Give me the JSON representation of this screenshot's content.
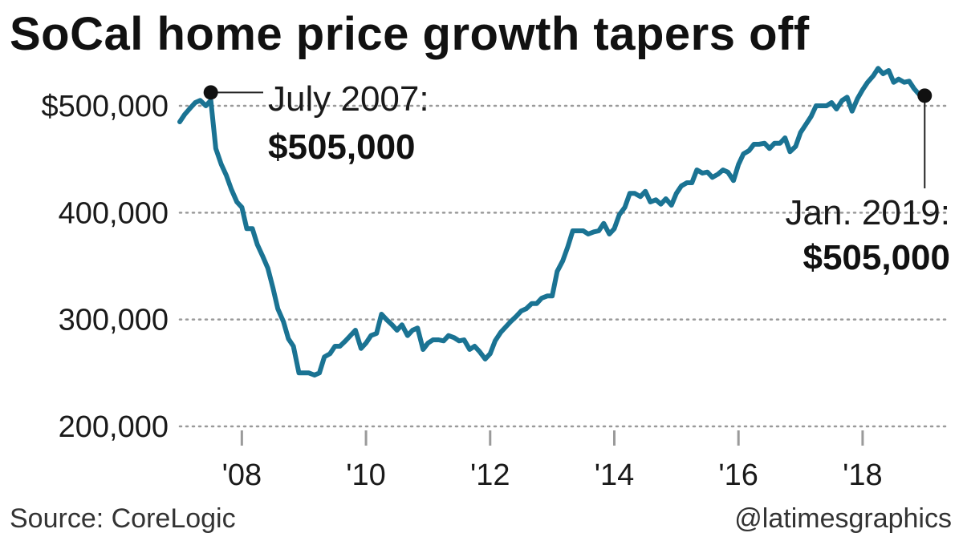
{
  "title": "SoCal home price growth tapers off",
  "source": "Source: CoreLogic",
  "credit": "@latimesgraphics",
  "chart_data": {
    "type": "line",
    "title": "SoCal home price growth tapers off",
    "xlabel": "",
    "ylabel": "",
    "line_color": "#1a7393",
    "grid": "dotted horizontal",
    "xlim": [
      2007.0,
      2019.1
    ],
    "ylim": [
      200000,
      540000
    ],
    "y_ticks": [
      {
        "value": 500000,
        "label": "$500,000"
      },
      {
        "value": 400000,
        "label": "400,000"
      },
      {
        "value": 300000,
        "label": "300,000"
      },
      {
        "value": 200000,
        "label": "200,000"
      }
    ],
    "x_ticks": [
      {
        "value": 2008,
        "label": "'08"
      },
      {
        "value": 2010,
        "label": "'10"
      },
      {
        "value": 2012,
        "label": "'12"
      },
      {
        "value": 2014,
        "label": "'14"
      },
      {
        "value": 2016,
        "label": "'16"
      },
      {
        "value": 2018,
        "label": "'18"
      }
    ],
    "series": [
      {
        "name": "",
        "x": [
          2007.0,
          2007.08,
          2007.17,
          2007.25,
          2007.33,
          2007.42,
          2007.5,
          2007.58,
          2007.67,
          2007.75,
          2007.83,
          2007.92,
          2008.0,
          2008.08,
          2008.17,
          2008.25,
          2008.33,
          2008.42,
          2008.5,
          2008.58,
          2008.67,
          2008.75,
          2008.83,
          2008.92,
          2009.0,
          2009.08,
          2009.17,
          2009.25,
          2009.33,
          2009.42,
          2009.5,
          2009.58,
          2009.67,
          2009.75,
          2009.83,
          2009.92,
          2010.0,
          2010.08,
          2010.17,
          2010.25,
          2010.33,
          2010.42,
          2010.5,
          2010.58,
          2010.67,
          2010.75,
          2010.83,
          2010.92,
          2011.0,
          2011.08,
          2011.17,
          2011.25,
          2011.33,
          2011.42,
          2011.5,
          2011.58,
          2011.67,
          2011.75,
          2011.83,
          2011.92,
          2012.0,
          2012.08,
          2012.17,
          2012.25,
          2012.33,
          2012.42,
          2012.5,
          2012.58,
          2012.67,
          2012.75,
          2012.83,
          2012.92,
          2013.0,
          2013.08,
          2013.17,
          2013.25,
          2013.33,
          2013.42,
          2013.5,
          2013.58,
          2013.67,
          2013.75,
          2013.83,
          2013.92,
          2014.0,
          2014.08,
          2014.17,
          2014.25,
          2014.33,
          2014.42,
          2014.5,
          2014.58,
          2014.67,
          2014.75,
          2014.83,
          2014.92,
          2015.0,
          2015.08,
          2015.17,
          2015.25,
          2015.33,
          2015.42,
          2015.5,
          2015.58,
          2015.67,
          2015.75,
          2015.83,
          2015.92,
          2016.0,
          2016.08,
          2016.17,
          2016.25,
          2016.33,
          2016.42,
          2016.5,
          2016.58,
          2016.67,
          2016.75,
          2016.83,
          2016.92,
          2017.0,
          2017.08,
          2017.17,
          2017.25,
          2017.33,
          2017.42,
          2017.5,
          2017.58,
          2017.67,
          2017.75,
          2017.83,
          2017.92,
          2018.0,
          2018.08,
          2018.17,
          2018.25,
          2018.33,
          2018.42,
          2018.5,
          2018.58,
          2018.67,
          2018.75,
          2018.83,
          2018.92,
          2019.0
        ],
        "values": [
          485000,
          492000,
          498000,
          503000,
          505000,
          500000,
          505000,
          460000,
          445000,
          435000,
          422000,
          410000,
          405000,
          385000,
          385000,
          370000,
          360000,
          348000,
          330000,
          310000,
          298000,
          282000,
          275000,
          250000,
          250000,
          250000,
          248000,
          250000,
          265000,
          268000,
          275000,
          275000,
          280000,
          285000,
          290000,
          273000,
          278000,
          285000,
          287000,
          305000,
          300000,
          295000,
          290000,
          295000,
          285000,
          290000,
          292000,
          272000,
          278000,
          281000,
          281000,
          280000,
          285000,
          283000,
          280000,
          281000,
          272000,
          275000,
          270000,
          263000,
          268000,
          280000,
          288000,
          293000,
          298000,
          303000,
          308000,
          310000,
          315000,
          315000,
          320000,
          322000,
          322000,
          345000,
          355000,
          368000,
          383000,
          383000,
          383000,
          380000,
          382000,
          383000,
          390000,
          380000,
          385000,
          398000,
          405000,
          418000,
          418000,
          415000,
          420000,
          410000,
          412000,
          408000,
          413000,
          407000,
          418000,
          425000,
          428000,
          428000,
          440000,
          437000,
          438000,
          433000,
          436000,
          440000,
          438000,
          430000,
          445000,
          455000,
          458000,
          464000,
          464000,
          465000,
          460000,
          465000,
          465000,
          470000,
          457000,
          462000,
          475000,
          482000,
          490000,
          500000,
          500000,
          500000,
          503000,
          497000,
          505000,
          508000,
          495000,
          507000,
          515000,
          522000,
          528000,
          535000,
          530000,
          533000,
          522000,
          525000,
          522000,
          523000,
          516000,
          510000,
          505000
        ]
      }
    ],
    "annotations": [
      {
        "x": 2007.5,
        "y": 505000,
        "date": "July 2007:",
        "value": "$505,000"
      },
      {
        "x": 2019.0,
        "y": 505000,
        "date": "Jan. 2019:",
        "value": "$505,000"
      }
    ]
  }
}
